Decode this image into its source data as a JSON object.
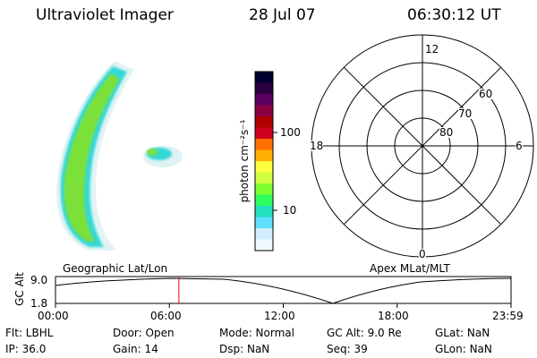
{
  "header": {
    "title": "Ultraviolet Imager",
    "date": "28 Jul 07",
    "time": "06:30:12 UT"
  },
  "colorbar": {
    "label": "photon cm⁻²s⁻¹",
    "ticks": [
      "100",
      "10"
    ],
    "colors": [
      "#000030",
      "#2a0040",
      "#5a0060",
      "#8a0040",
      "#b00000",
      "#d00020",
      "#ff7000",
      "#ffb000",
      "#ffff40",
      "#d0ff40",
      "#80ff30",
      "#30ff60",
      "#20e0c0",
      "#60e0ff",
      "#d0f0ff",
      "#f0f8ff"
    ]
  },
  "polar": {
    "mlt_labels": [
      "12",
      "18",
      "6",
      "0"
    ],
    "lat_labels": [
      "60",
      "70",
      "80"
    ]
  },
  "timeline": {
    "left_title": "Geographic Lat/Lon",
    "right_title": "Apex  MLat/MLT",
    "ylabel": "GC Alt",
    "ytick_top": "9.0",
    "ytick_bottom": "1.8",
    "xticks": [
      "00:00",
      "06:00",
      "12:00",
      "18:00",
      "23:59"
    ],
    "marker_time_hours": 6.5
  },
  "info": {
    "filter": "Flt: LBHL",
    "ip": "IP: 36.0",
    "door": "Door: Open",
    "gain": "Gain: 14",
    "mode": "Mode: Normal",
    "dsp": "Dsp:     NaN",
    "gcalt": "GC Alt: 9.0 Re",
    "seq": "Seq: 39",
    "glat": "GLat:      NaN",
    "glon": "GLon:      NaN"
  },
  "colors": {
    "marker": "#ff0000",
    "aurora_green": "#7be03a",
    "aurora_cyan": "#35d8d8"
  }
}
